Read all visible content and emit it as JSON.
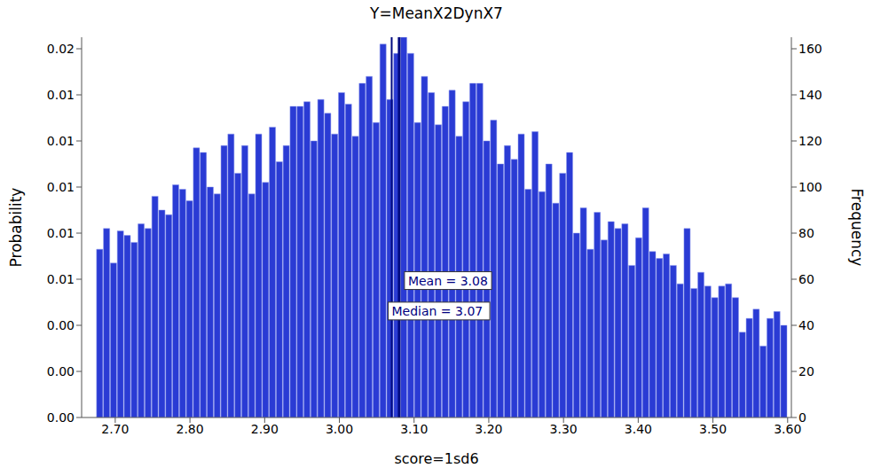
{
  "chart_data": {
    "type": "histogram",
    "title": "Y=MeanX2DynX7",
    "x_label": "score=1sd6",
    "y_label": "Probability",
    "y2_label": "Frequency",
    "bins": [
      2.675,
      2.68425,
      2.6935,
      2.70275,
      2.712,
      2.72125,
      2.7305,
      2.73975,
      2.749,
      2.75825,
      2.7675,
      2.77675,
      2.786,
      2.79525,
      2.8045,
      2.81375,
      2.823,
      2.83225,
      2.8415,
      2.85075,
      2.86,
      2.86925,
      2.8785,
      2.88775,
      2.897,
      2.90625,
      2.9155,
      2.92475,
      2.934,
      2.94325,
      2.9525,
      2.96175,
      2.971,
      2.98025,
      2.9895,
      2.99875,
      3.008,
      3.01725,
      3.0265,
      3.03575,
      3.045,
      3.05425,
      3.0635,
      3.07275,
      3.082,
      3.09125,
      3.1005,
      3.10975,
      3.119,
      3.12825,
      3.1375,
      3.14675,
      3.156,
      3.16525,
      3.1745,
      3.18375,
      3.193,
      3.20225,
      3.2115,
      3.22075,
      3.23,
      3.23925,
      3.2485,
      3.25775,
      3.267,
      3.27625,
      3.2855,
      3.29475,
      3.304,
      3.31325,
      3.3225,
      3.33175,
      3.341,
      3.35025,
      3.3595,
      3.36875,
      3.378,
      3.38725,
      3.3965,
      3.40575,
      3.415,
      3.42425,
      3.4335,
      3.44275,
      3.452,
      3.46125,
      3.4705,
      3.47975,
      3.489,
      3.49825,
      3.5075,
      3.51675,
      3.526,
      3.53525,
      3.5445,
      3.55375,
      3.563,
      3.57225,
      3.5815,
      3.59075,
      3.6
    ],
    "series": [
      {
        "color": "#2a3bd4",
        "axis": "y2",
        "values": [
          73,
          82,
          67,
          81,
          79,
          76,
          84,
          82,
          96,
          90,
          88,
          101,
          99,
          94,
          117,
          115,
          100,
          97,
          118,
          123,
          106,
          118,
          97,
          123,
          102,
          126,
          111,
          118,
          135,
          135,
          137,
          120,
          138,
          132,
          123,
          141,
          136,
          122,
          145,
          148,
          128,
          162,
          138,
          158,
          165,
          158,
          128,
          148,
          141,
          127,
          135,
          142,
          122,
          137,
          145,
          145,
          120,
          129,
          110,
          118,
          112,
          123,
          99,
          124,
          98,
          110,
          93,
          106,
          115,
          80,
          91,
          73,
          89,
          77,
          85,
          82,
          84,
          66,
          78,
          91,
          72,
          69,
          71,
          66,
          58,
          82,
          56,
          63,
          57,
          52,
          57,
          58,
          52,
          37,
          43,
          47,
          31,
          43,
          46,
          40
        ]
      }
    ],
    "xlim": [
      2.655,
      3.605
    ],
    "xticks": [
      {
        "value": 2.7,
        "label": "2.70"
      },
      {
        "value": 2.8,
        "label": "2.80"
      },
      {
        "value": 2.9,
        "label": "2.90"
      },
      {
        "value": 3.0,
        "label": "3.00"
      },
      {
        "value": 3.1,
        "label": "3.10"
      },
      {
        "value": 3.2,
        "label": "3.20"
      },
      {
        "value": 3.3,
        "label": "3.30"
      },
      {
        "value": 3.4,
        "label": "3.40"
      },
      {
        "value": 3.5,
        "label": "3.50"
      },
      {
        "value": 3.6,
        "label": "3.60"
      }
    ],
    "ylim": [
      0,
      0.0165
    ],
    "yticks": [
      {
        "value": 0,
        "label": "0.00"
      },
      {
        "value": 0.002,
        "label": "0.00"
      },
      {
        "value": 0.004,
        "label": "0.00"
      },
      {
        "value": 0.006,
        "label": "0.01"
      },
      {
        "value": 0.008,
        "label": "0.01"
      },
      {
        "value": 0.01,
        "label": "0.01"
      },
      {
        "value": 0.012,
        "label": "0.01"
      },
      {
        "value": 0.014,
        "label": "0.01"
      },
      {
        "value": 0.016,
        "label": "0.02"
      }
    ],
    "y2lim": [
      0,
      165
    ],
    "y2ticks": [
      0,
      20,
      40,
      60,
      80,
      100,
      120,
      140,
      160
    ],
    "reference_lines": [
      {
        "x": 3.08,
        "label": "Mean = 3.08"
      },
      {
        "x": 3.07,
        "label": "Median = 3.07"
      }
    ],
    "grid": false
  }
}
